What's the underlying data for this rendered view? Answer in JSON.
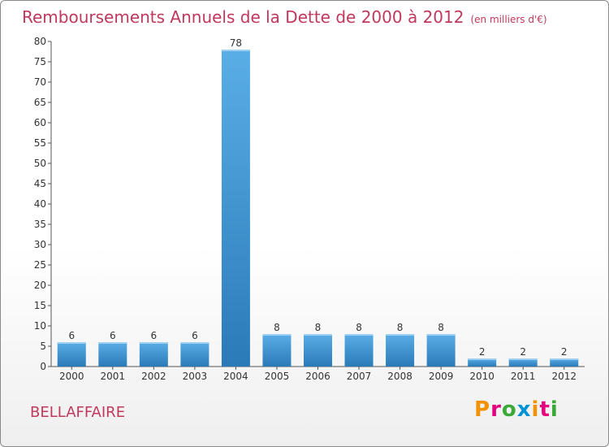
{
  "header": {
    "title": "Remboursements Annuels de la Dette de 2000 à 2012",
    "unit": "(en milliers d'€)"
  },
  "footer": {
    "commune": "BELLAFFAIRE",
    "logo": "Proxiti",
    "logo_colors": [
      "#f39200",
      "#e6007e",
      "#3aa935",
      "#0093d3",
      "#f39200",
      "#e6007e",
      "#3aa935"
    ]
  },
  "chart_data": {
    "type": "bar",
    "title": "Remboursements Annuels de la Dette de 2000 à 2012",
    "xlabel": "",
    "ylabel": "",
    "categories": [
      "2000",
      "2001",
      "2002",
      "2003",
      "2004",
      "2005",
      "2006",
      "2007",
      "2008",
      "2009",
      "2010",
      "2011",
      "2012"
    ],
    "values": [
      6,
      6,
      6,
      6,
      78,
      8,
      8,
      8,
      8,
      8,
      2,
      2,
      2
    ],
    "ylim": [
      0,
      80
    ],
    "yticks": [
      0,
      5,
      10,
      15,
      20,
      25,
      30,
      35,
      40,
      45,
      50,
      55,
      60,
      65,
      70,
      75,
      80
    ],
    "grid": false,
    "bar_color_top": "#5aaee6",
    "bar_color_bottom": "#2a7ab8"
  }
}
